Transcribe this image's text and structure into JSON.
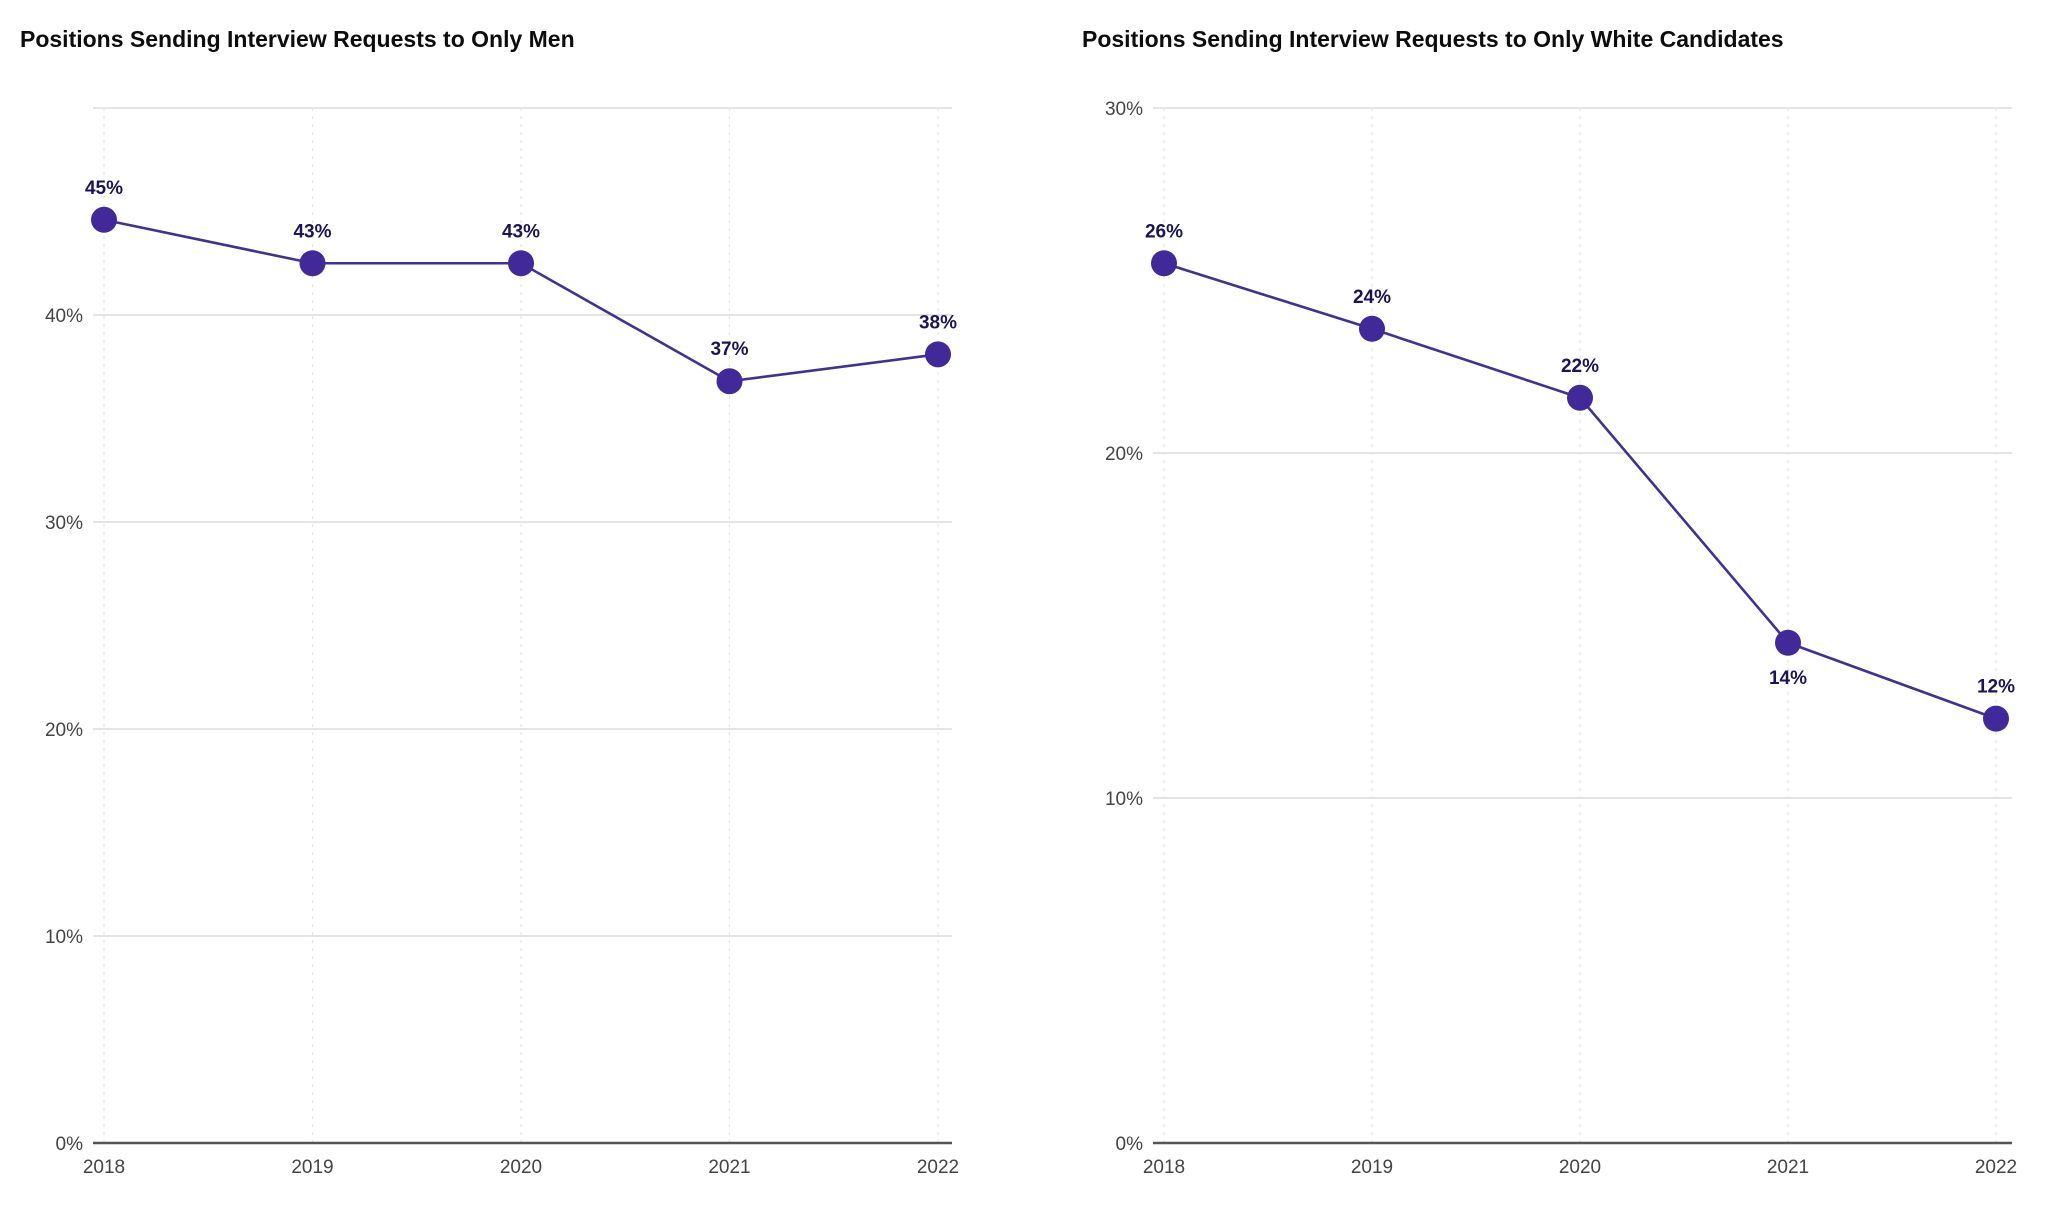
{
  "chart_data": [
    {
      "type": "line",
      "title": "Positions Sending Interview Requests to Only Men",
      "xlabel": "",
      "ylabel": "",
      "x": [
        "2018",
        "2019",
        "2020",
        "2021",
        "2022"
      ],
      "values": [
        44.6,
        42.5,
        42.5,
        36.8,
        38.1
      ],
      "data_labels": [
        "45%",
        "43%",
        "43%",
        "37%",
        "38%"
      ],
      "label_position": [
        "above",
        "above",
        "above",
        "above",
        "above"
      ],
      "ylim": [
        0,
        50
      ],
      "yticks": [
        0,
        10,
        20,
        30,
        40
      ],
      "ytick_labels": [
        "0%",
        "10%",
        "20%",
        "30%",
        "40%"
      ],
      "grid": true,
      "color": "#42299a"
    },
    {
      "type": "line",
      "title": "Positions Sending Interview Requests to Only White Candidates",
      "xlabel": "",
      "ylabel": "",
      "x": [
        "2018",
        "2019",
        "2020",
        "2021",
        "2022"
      ],
      "values": [
        25.5,
        23.6,
        21.6,
        14.5,
        12.3
      ],
      "data_labels": [
        "26%",
        "24%",
        "22%",
        "14%",
        "12%"
      ],
      "label_position": [
        "above",
        "above",
        "above",
        "below",
        "above"
      ],
      "ylim": [
        0,
        30
      ],
      "yticks": [
        0,
        10,
        20,
        30
      ],
      "ytick_labels": [
        "0%",
        "10%",
        "20%",
        "30%"
      ],
      "grid": true,
      "color": "#42299a"
    }
  ]
}
